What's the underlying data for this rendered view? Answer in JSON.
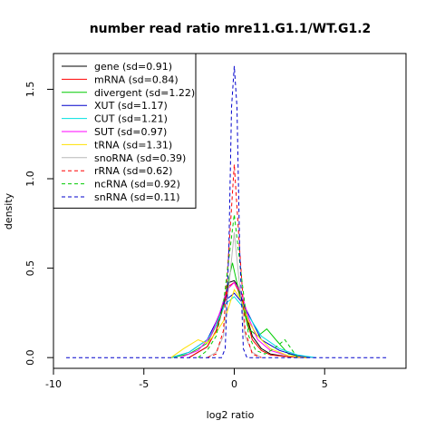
{
  "chart_data": {
    "type": "line",
    "title": "number read ratio mre11.G1.1/WT.G1.2",
    "xlabel": "log2 ratio",
    "ylabel": "density",
    "xlim": [
      -10,
      9.5
    ],
    "ylim": [
      -0.06,
      1.7
    ],
    "xticks": [
      -10,
      -5,
      0,
      5
    ],
    "yticks": [
      0.0,
      0.5,
      1.0,
      1.5
    ],
    "xtick_labels": [
      "-10",
      "-5",
      "0",
      "5"
    ],
    "ytick_labels": [
      "0.0",
      "0.5",
      "1.0",
      "1.5"
    ],
    "grid": false,
    "legend_position": "top-left",
    "series": [
      {
        "name": "gene (sd=0.91)",
        "color": "#000000",
        "dash": "solid",
        "x": [
          -2.5,
          -1.5,
          -1,
          -0.6,
          -0.3,
          0,
          0.2,
          0.5,
          1,
          1.5,
          2,
          3,
          4
        ],
        "y": [
          0,
          0.06,
          0.15,
          0.3,
          0.42,
          0.43,
          0.4,
          0.3,
          0.12,
          0.05,
          0.02,
          0.005,
          0
        ]
      },
      {
        "name": "mRNA (sd=0.84)",
        "color": "#ff0000",
        "dash": "solid",
        "x": [
          -2.5,
          -1.5,
          -1,
          -0.6,
          -0.3,
          0,
          0.2,
          0.5,
          1,
          1.5,
          2,
          3,
          4
        ],
        "y": [
          0,
          0.06,
          0.15,
          0.28,
          0.4,
          0.42,
          0.38,
          0.28,
          0.1,
          0.04,
          0.015,
          0.005,
          0
        ]
      },
      {
        "name": "divergent (sd=1.22)",
        "color": "#00cc00",
        "dash": "solid",
        "x": [
          -3.5,
          -2.5,
          -1.5,
          -1,
          -0.5,
          -0.1,
          0.3,
          0.8,
          1.3,
          1.8,
          2.3,
          3,
          4
        ],
        "y": [
          0,
          0.02,
          0.08,
          0.18,
          0.35,
          0.53,
          0.35,
          0.16,
          0.12,
          0.16,
          0.1,
          0.02,
          0
        ]
      },
      {
        "name": "XUT (sd=1.17)",
        "color": "#0000cc",
        "dash": "solid",
        "x": [
          -3.5,
          -2.5,
          -1.5,
          -1,
          -0.5,
          0,
          0.5,
          1,
          1.5,
          2.5,
          3.5,
          4.5
        ],
        "y": [
          0,
          0.03,
          0.1,
          0.2,
          0.32,
          0.36,
          0.3,
          0.2,
          0.1,
          0.04,
          0.01,
          0
        ]
      },
      {
        "name": "CUT (sd=1.21)",
        "color": "#00e0e0",
        "dash": "solid",
        "x": [
          -3.5,
          -2.5,
          -1.5,
          -1,
          -0.5,
          0,
          0.5,
          1,
          1.5,
          2.5,
          3.5,
          4.5
        ],
        "y": [
          0,
          0.03,
          0.1,
          0.18,
          0.3,
          0.34,
          0.28,
          0.2,
          0.12,
          0.05,
          0.015,
          0
        ]
      },
      {
        "name": "SUT (sd=0.97)",
        "color": "#ff00ff",
        "dash": "solid",
        "x": [
          -3,
          -2,
          -1.3,
          -0.8,
          -0.4,
          0,
          0.4,
          0.8,
          1.3,
          2,
          3,
          4
        ],
        "y": [
          0,
          0.04,
          0.12,
          0.25,
          0.38,
          0.42,
          0.36,
          0.22,
          0.1,
          0.04,
          0.01,
          0
        ]
      },
      {
        "name": "tRNA (sd=1.31)",
        "color": "#ffe000",
        "dash": "solid",
        "x": [
          -3.5,
          -2.8,
          -2,
          -1.5,
          -1,
          -0.5,
          0,
          0.4,
          0.8,
          1.3,
          2,
          3,
          4
        ],
        "y": [
          0,
          0.05,
          0.1,
          0.08,
          0.14,
          0.22,
          0.38,
          0.32,
          0.2,
          0.12,
          0.05,
          0.01,
          0
        ]
      },
      {
        "name": "snoRNA (sd=0.39)",
        "color": "#b8b8b8",
        "dash": "solid",
        "x": [
          -1.5,
          -1,
          -0.6,
          -0.3,
          0,
          0.3,
          0.6,
          1,
          1.5
        ],
        "y": [
          0,
          0.03,
          0.12,
          0.4,
          0.7,
          0.4,
          0.12,
          0.03,
          0
        ]
      },
      {
        "name": "rRNA (sd=0.62)",
        "color": "#ff0000",
        "dash": "dashed",
        "x": [
          -1.5,
          -1,
          -0.6,
          -0.3,
          0,
          0.3,
          0.6,
          1,
          1.5
        ],
        "y": [
          0,
          0.02,
          0.15,
          0.6,
          1.08,
          0.6,
          0.15,
          0.02,
          0
        ]
      },
      {
        "name": "ncRNA (sd=0.92)",
        "color": "#00cc00",
        "dash": "dashed",
        "x": [
          -2,
          -1.5,
          -1,
          -0.6,
          -0.3,
          0,
          0.4,
          0.8,
          1.2,
          1.7,
          2.2,
          2.8,
          3.5
        ],
        "y": [
          0,
          0.04,
          0.12,
          0.3,
          0.55,
          0.8,
          0.45,
          0.12,
          0.04,
          0.02,
          0.05,
          0.1,
          0
        ]
      },
      {
        "name": "snRNA (sd=0.11)",
        "color": "#0000cc",
        "dash": "dashed",
        "x": [
          -9.3,
          -0.7,
          -0.5,
          -0.3,
          -0.15,
          0,
          0.15,
          0.3,
          0.5,
          0.7,
          8.4
        ],
        "y": [
          0,
          0,
          0.05,
          0.6,
          1.4,
          1.63,
          1.4,
          0.6,
          0.05,
          0,
          0
        ]
      }
    ]
  }
}
